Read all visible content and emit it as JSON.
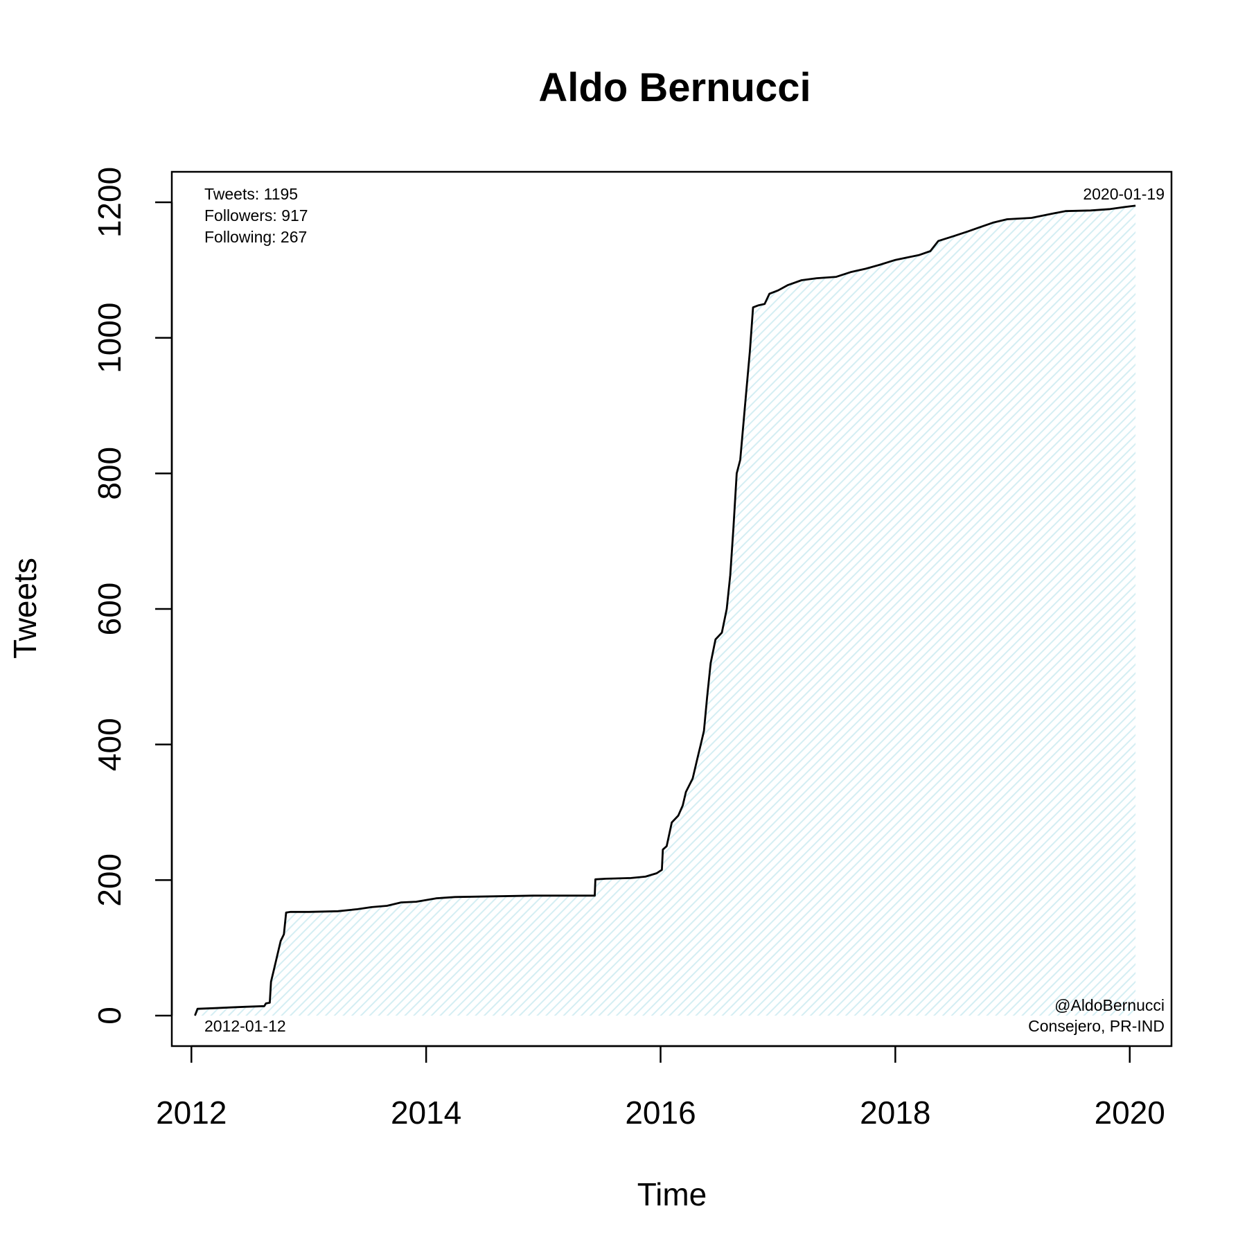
{
  "chart_data": {
    "type": "area",
    "title": "Aldo Bernucci",
    "xlabel": "Time",
    "ylabel": "Tweets",
    "xlim": [
      "2011-11-01",
      "2020-05-10"
    ],
    "ylim": [
      -45,
      1245
    ],
    "x_ticks": [
      "2012",
      "2014",
      "2016",
      "2018",
      "2020"
    ],
    "y_ticks": [
      0,
      200,
      400,
      600,
      800,
      1000,
      1200
    ],
    "grid": false,
    "fill_color": "#dff2f6",
    "line_color": "#000000",
    "stats": {
      "tweets": "Tweets: 1195",
      "followers": "Followers: 917",
      "following": "Following: 267"
    },
    "start_label": "2012-01-12",
    "end_label": "2020-01-19",
    "handle": "@AldoBernucci",
    "role": "Consejero, PR-IND",
    "series": [
      {
        "points": [
          [
            "2012-01-12",
            0
          ],
          [
            "2012-01-20",
            10
          ],
          [
            "2012-03-15",
            11
          ],
          [
            "2012-05-01",
            12
          ],
          [
            "2012-06-15",
            13
          ],
          [
            "2012-08-15",
            14
          ],
          [
            "2012-08-20",
            18
          ],
          [
            "2012-09-01",
            19
          ],
          [
            "2012-09-05",
            50
          ],
          [
            "2012-09-15",
            70
          ],
          [
            "2012-09-25",
            90
          ],
          [
            "2012-10-05",
            110
          ],
          [
            "2012-10-15",
            120
          ],
          [
            "2012-10-22",
            152
          ],
          [
            "2012-11-05",
            153
          ],
          [
            "2013-01-01",
            153
          ],
          [
            "2013-04-01",
            154
          ],
          [
            "2013-06-01",
            157
          ],
          [
            "2013-07-15",
            160
          ],
          [
            "2013-09-01",
            162
          ],
          [
            "2013-10-15",
            167
          ],
          [
            "2013-12-01",
            168
          ],
          [
            "2014-02-01",
            173
          ],
          [
            "2014-04-01",
            175
          ],
          [
            "2014-08-01",
            176
          ],
          [
            "2014-12-01",
            177
          ],
          [
            "2015-03-01",
            177
          ],
          [
            "2015-06-10",
            177
          ],
          [
            "2015-06-12",
            201
          ],
          [
            "2015-07-15",
            202
          ],
          [
            "2015-10-01",
            203
          ],
          [
            "2015-11-15",
            205
          ],
          [
            "2015-12-20",
            210
          ],
          [
            "2016-01-05",
            215
          ],
          [
            "2016-01-08",
            245
          ],
          [
            "2016-01-20",
            250
          ],
          [
            "2016-02-05",
            285
          ],
          [
            "2016-02-25",
            295
          ],
          [
            "2016-03-10",
            310
          ],
          [
            "2016-03-20",
            330
          ],
          [
            "2016-04-10",
            350
          ],
          [
            "2016-04-25",
            380
          ],
          [
            "2016-05-05",
            400
          ],
          [
            "2016-05-15",
            420
          ],
          [
            "2016-05-25",
            470
          ],
          [
            "2016-06-05",
            520
          ],
          [
            "2016-06-20",
            555
          ],
          [
            "2016-07-10",
            565
          ],
          [
            "2016-07-25",
            600
          ],
          [
            "2016-08-05",
            650
          ],
          [
            "2016-08-15",
            720
          ],
          [
            "2016-08-25",
            800
          ],
          [
            "2016-09-05",
            820
          ],
          [
            "2016-09-20",
            900
          ],
          [
            "2016-10-05",
            980
          ],
          [
            "2016-10-15",
            1045
          ],
          [
            "2016-11-01",
            1048
          ],
          [
            "2016-11-20",
            1050
          ],
          [
            "2016-12-05",
            1065
          ],
          [
            "2017-01-01",
            1070
          ],
          [
            "2017-02-01",
            1078
          ],
          [
            "2017-03-15",
            1085
          ],
          [
            "2017-05-01",
            1088
          ],
          [
            "2017-07-01",
            1090
          ],
          [
            "2017-08-15",
            1097
          ],
          [
            "2017-10-01",
            1102
          ],
          [
            "2017-11-15",
            1108
          ],
          [
            "2018-01-01",
            1115
          ],
          [
            "2018-02-01",
            1118
          ],
          [
            "2018-03-15",
            1122
          ],
          [
            "2018-04-20",
            1128
          ],
          [
            "2018-05-15",
            1143
          ],
          [
            "2018-07-01",
            1150
          ],
          [
            "2018-08-15",
            1157
          ],
          [
            "2018-09-20",
            1163
          ],
          [
            "2018-11-01",
            1170
          ],
          [
            "2018-12-15",
            1175
          ],
          [
            "2019-03-01",
            1177
          ],
          [
            "2019-05-01",
            1183
          ],
          [
            "2019-06-15",
            1187
          ],
          [
            "2019-09-01",
            1188
          ],
          [
            "2019-11-01",
            1190
          ],
          [
            "2019-12-15",
            1193
          ],
          [
            "2020-01-19",
            1195
          ]
        ]
      }
    ]
  }
}
